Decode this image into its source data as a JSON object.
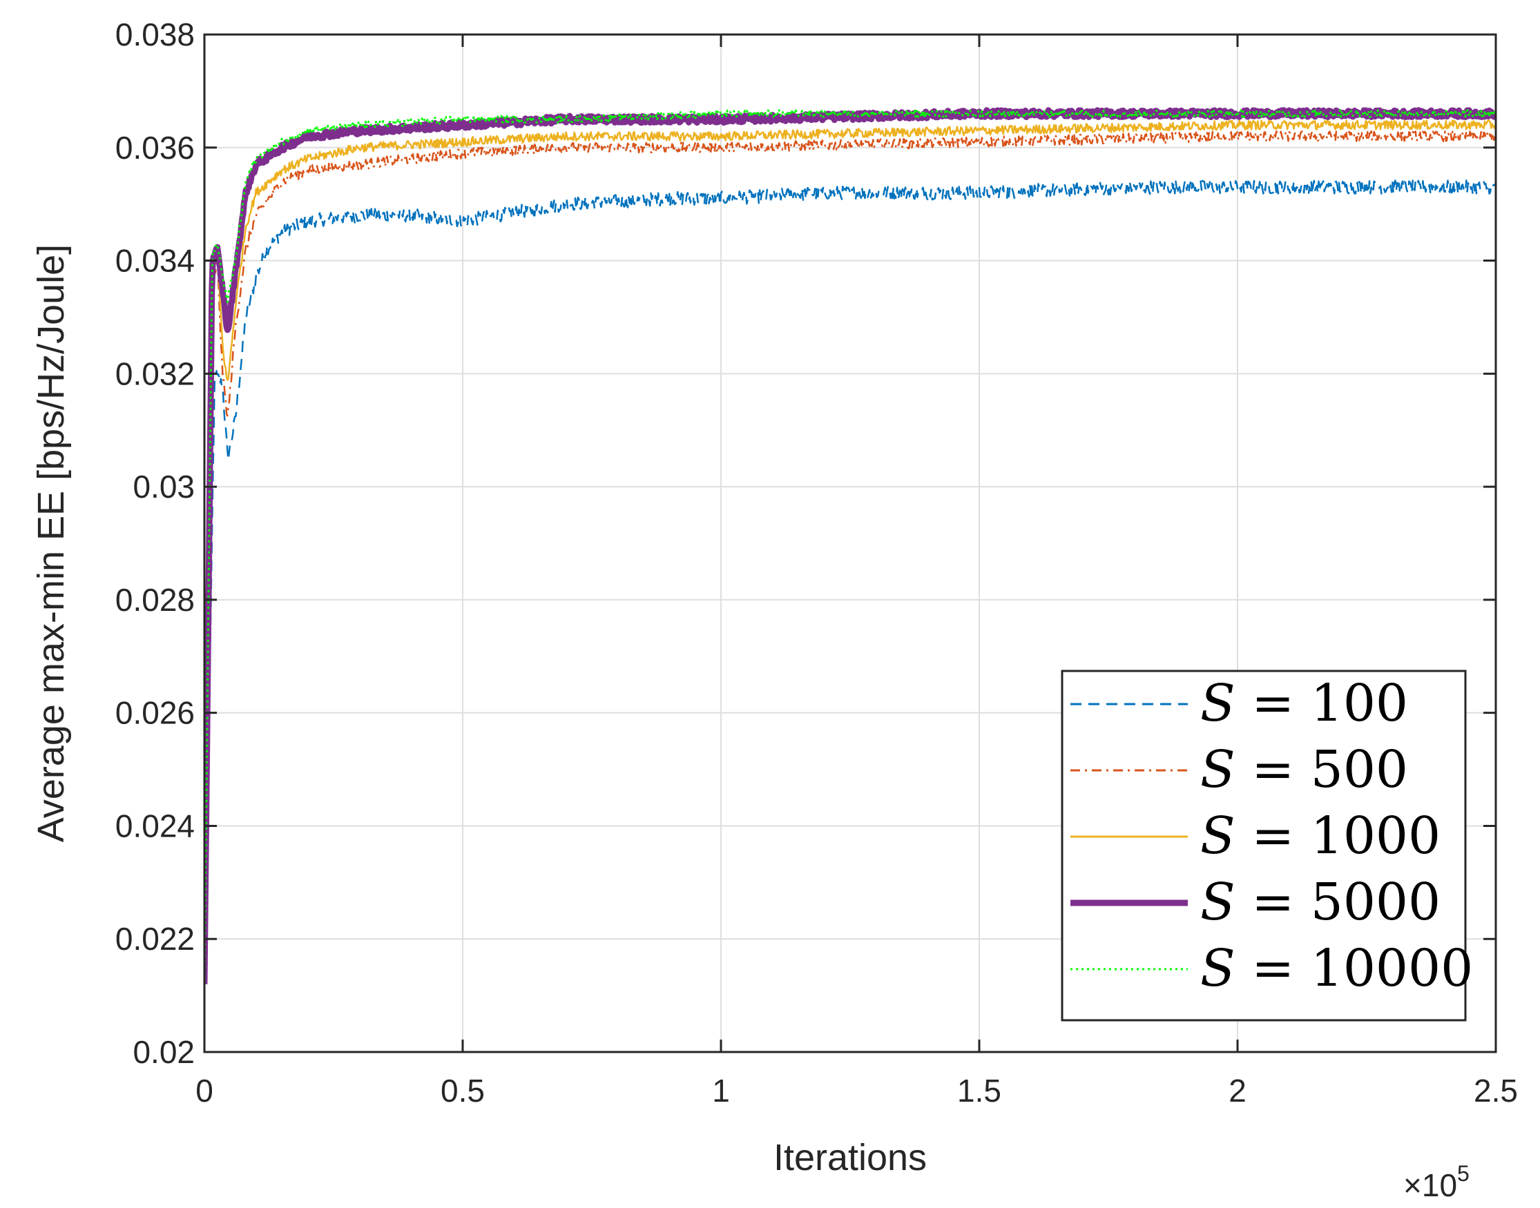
{
  "chart_data": {
    "type": "line",
    "title": "",
    "xlabel": "Iterations",
    "ylabel": "Average max-min EE [bps/Hz/Joule]",
    "x_multiplier_base": "×10",
    "x_multiplier_exp": "5",
    "xlim": [
      0,
      2.5
    ],
    "ylim": [
      0.02,
      0.038
    ],
    "grid": true,
    "legend_position": "bottom-right",
    "xticks": [
      0,
      0.5,
      1,
      1.5,
      2,
      2.5
    ],
    "xtick_labels": [
      "0",
      "0.5",
      "1",
      "1.5",
      "2",
      "2.5"
    ],
    "yticks": [
      0.02,
      0.022,
      0.024,
      0.026,
      0.028,
      0.03,
      0.032,
      0.034,
      0.036,
      0.038
    ],
    "ytick_labels": [
      "0.02",
      "0.022",
      "0.024",
      "0.026",
      "0.028",
      "0.03",
      "0.032",
      "0.034",
      "0.036",
      "0.038"
    ],
    "series": [
      {
        "name": "S = 100",
        "legend_var": "S",
        "legend_eq": "= 100",
        "color": "#0072BD",
        "style": "dashed",
        "noise": 0.00012,
        "x": [
          0,
          0.02,
          0.035,
          0.045,
          0.06,
          0.08,
          0.1,
          0.12,
          0.15,
          0.2,
          0.3,
          0.4,
          0.5,
          0.7,
          0.9,
          1.0,
          1.2,
          1.5,
          1.8,
          2.0,
          2.2,
          2.5
        ],
        "y": [
          0.0212,
          0.032,
          0.0318,
          0.0305,
          0.0312,
          0.033,
          0.0337,
          0.0342,
          0.0345,
          0.0347,
          0.0348,
          0.0348,
          0.0347,
          0.035,
          0.0351,
          0.0351,
          0.0352,
          0.0352,
          0.0353,
          0.0353,
          0.0353,
          0.0353
        ]
      },
      {
        "name": "S = 500",
        "legend_var": "S",
        "legend_eq": "= 500",
        "color": "#D95319",
        "style": "dashdot",
        "noise": 9e-05,
        "x": [
          0,
          0.015,
          0.025,
          0.035,
          0.045,
          0.06,
          0.08,
          0.1,
          0.15,
          0.2,
          0.3,
          0.4,
          0.5,
          0.7,
          1.0,
          1.5,
          2.0,
          2.5
        ],
        "y": [
          0.0212,
          0.0335,
          0.034,
          0.032,
          0.0312,
          0.0328,
          0.0342,
          0.0348,
          0.0354,
          0.0356,
          0.0357,
          0.0358,
          0.0359,
          0.036,
          0.036,
          0.0361,
          0.0362,
          0.0362
        ]
      },
      {
        "name": "S = 1000",
        "legend_var": "S",
        "legend_eq": "= 1000",
        "color": "#EDB120",
        "style": "solid",
        "noise": 8e-05,
        "x": [
          0,
          0.015,
          0.025,
          0.035,
          0.045,
          0.06,
          0.08,
          0.1,
          0.15,
          0.2,
          0.3,
          0.5,
          0.7,
          1.0,
          1.5,
          2.0,
          2.5
        ],
        "y": [
          0.0212,
          0.0338,
          0.0342,
          0.0325,
          0.0318,
          0.0332,
          0.0346,
          0.0352,
          0.0356,
          0.0358,
          0.036,
          0.0361,
          0.0362,
          0.0362,
          0.0363,
          0.0364,
          0.0364
        ]
      },
      {
        "name": "S = 5000",
        "legend_var": "S",
        "legend_eq": "= 5000",
        "color": "#7E2F8E",
        "style": "thick",
        "noise": 6e-05,
        "x": [
          0,
          0.015,
          0.025,
          0.035,
          0.045,
          0.06,
          0.08,
          0.1,
          0.15,
          0.2,
          0.3,
          0.5,
          0.7,
          1.0,
          1.5,
          2.0,
          2.5
        ],
        "y": [
          0.0212,
          0.034,
          0.0342,
          0.0335,
          0.0327,
          0.0338,
          0.0352,
          0.0357,
          0.036,
          0.0362,
          0.0363,
          0.0364,
          0.0365,
          0.0365,
          0.0366,
          0.0366,
          0.0366
        ]
      },
      {
        "name": "S = 10000",
        "legend_var": "S",
        "legend_eq": "= 10000",
        "color": "#00FF00",
        "style": "dotted",
        "noise": 6e-05,
        "x": [
          0,
          0.015,
          0.025,
          0.035,
          0.045,
          0.06,
          0.08,
          0.1,
          0.15,
          0.2,
          0.3,
          0.5,
          0.7,
          1.0,
          1.5,
          2.0,
          2.5
        ],
        "y": [
          0.0212,
          0.0341,
          0.0343,
          0.0337,
          0.0333,
          0.034,
          0.0354,
          0.0358,
          0.0361,
          0.0363,
          0.0364,
          0.0365,
          0.0365,
          0.0366,
          0.0366,
          0.0366,
          0.0366
        ]
      }
    ]
  }
}
